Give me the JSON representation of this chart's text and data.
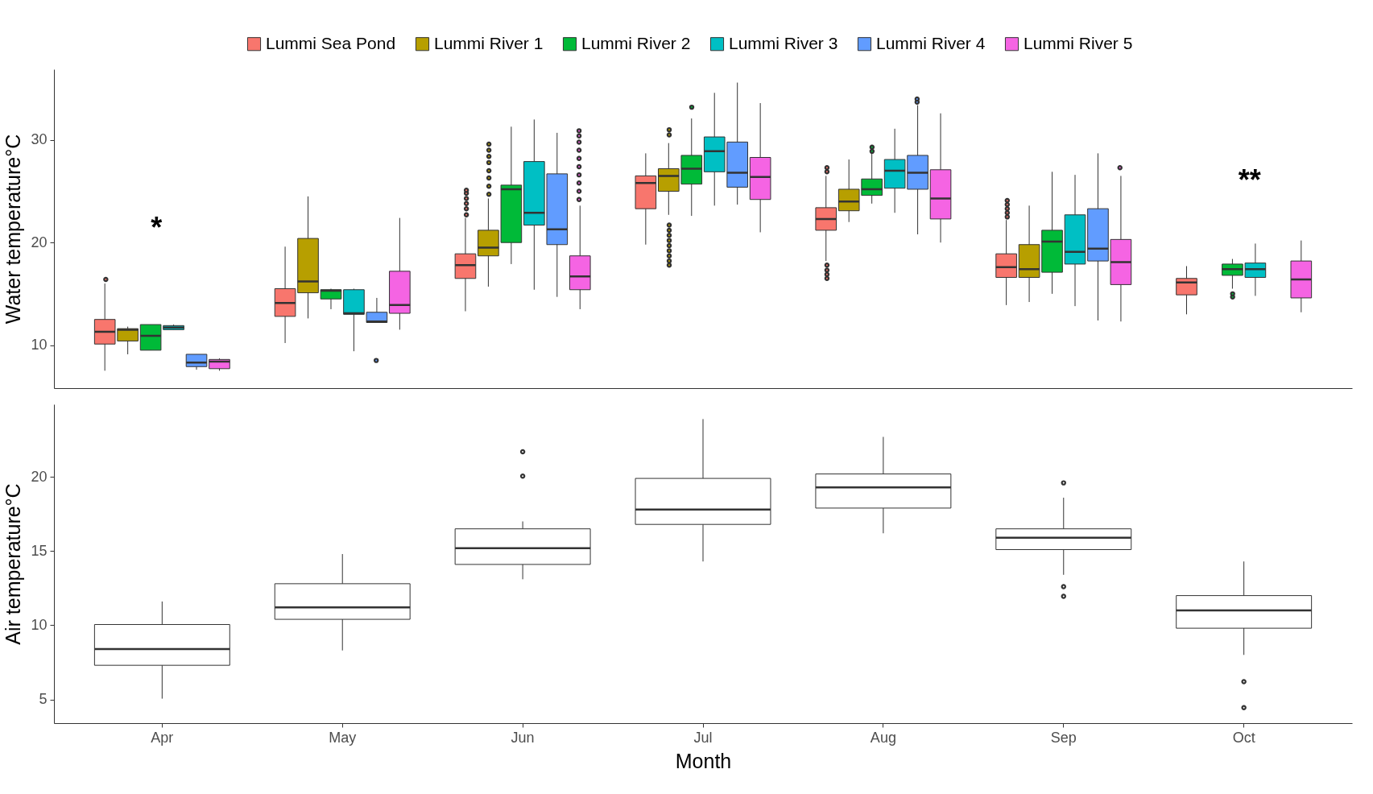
{
  "chart_data": [
    {
      "type": "box",
      "ylabel": "Water temperature°C",
      "ylim": [
        5.8,
        36.9
      ],
      "yticks": [
        10,
        20,
        30
      ],
      "tick_labels": "y",
      "legend": "top",
      "grid": false,
      "annotations": [
        "*",
        "**"
      ],
      "series": [
        {
          "name": "Lummi Sea Pond",
          "color": "#f8766d",
          "boxes": [
            {
              "low": 7.5,
              "q1": 10.1,
              "median": 11.3,
              "q3": 12.5,
              "high": 16.0,
              "outliers": [
                16.4
              ]
            },
            {
              "low": 10.2,
              "q1": 12.8,
              "median": 14.1,
              "q3": 15.5,
              "high": 19.6
            },
            {
              "low": 13.3,
              "q1": 16.5,
              "median": 17.8,
              "q3": 18.9,
              "high": 22.4,
              "outliers": [
                22.7,
                23.3,
                23.8,
                24.3,
                24.8,
                25.1
              ]
            },
            {
              "low": 19.8,
              "q1": 23.3,
              "median": 25.8,
              "q3": 26.5,
              "high": 28.7
            },
            {
              "low": 18.2,
              "q1": 21.2,
              "median": 22.3,
              "q3": 23.4,
              "high": 26.5,
              "outliers": [
                26.9,
                27.3,
                16.5,
                16.9,
                17.3,
                17.8
              ]
            },
            {
              "low": 13.9,
              "q1": 16.6,
              "median": 17.6,
              "q3": 18.9,
              "high": 22.2,
              "outliers": [
                22.5,
                22.9,
                23.3,
                23.7,
                24.1
              ]
            },
            {
              "low": 13.0,
              "q1": 14.9,
              "median": 16.1,
              "q3": 16.5,
              "high": 17.7
            }
          ]
        },
        {
          "name": "Lummi River 1",
          "color": "#b79f00",
          "boxes": [
            {
              "low": 9.1,
              "q1": 10.4,
              "median": 11.5,
              "q3": 11.6,
              "high": 11.8
            },
            {
              "low": 12.6,
              "q1": 15.1,
              "median": 16.2,
              "q3": 20.4,
              "high": 24.5
            },
            {
              "low": 15.7,
              "q1": 18.7,
              "median": 19.5,
              "q3": 21.2,
              "high": 24.3,
              "outliers": [
                24.7,
                25.5,
                26.3,
                27.0,
                27.8,
                28.4,
                29.0,
                29.6
              ]
            },
            {
              "low": 22.7,
              "q1": 25.0,
              "median": 26.5,
              "q3": 27.2,
              "high": 29.7,
              "outliers": [
                30.5,
                31.0,
                17.8,
                18.2,
                18.7,
                19.2,
                19.7,
                20.2,
                20.7,
                21.2,
                21.7
              ]
            },
            {
              "low": 22.0,
              "q1": 23.1,
              "median": 24.0,
              "q3": 25.2,
              "high": 28.1
            },
            {
              "low": 14.2,
              "q1": 16.6,
              "median": 17.4,
              "q3": 19.8,
              "high": 23.6
            },
            null
          ]
        },
        {
          "name": "Lummi River 2",
          "color": "#00ba38",
          "boxes": [
            {
              "low": 9.5,
              "q1": 9.5,
              "median": 10.9,
              "q3": 12.0,
              "high": 12.0
            },
            {
              "low": 13.5,
              "q1": 14.5,
              "median": 15.3,
              "q3": 15.4,
              "high": 15.5
            },
            {
              "low": 17.9,
              "q1": 20.0,
              "median": 25.2,
              "q3": 25.6,
              "high": 31.3
            },
            {
              "low": 22.6,
              "q1": 25.7,
              "median": 27.2,
              "q3": 28.5,
              "high": 32.1,
              "outliers": [
                33.2
              ]
            },
            {
              "low": 23.8,
              "q1": 24.6,
              "median": 25.2,
              "q3": 26.2,
              "high": 28.7,
              "outliers": [
                28.9,
                29.3
              ]
            },
            {
              "low": 15.0,
              "q1": 17.1,
              "median": 20.1,
              "q3": 21.2,
              "high": 26.9
            },
            {
              "low": 15.5,
              "q1": 16.8,
              "median": 17.4,
              "q3": 17.9,
              "high": 18.4,
              "outliers": [
                14.7,
                15.0
              ]
            }
          ]
        },
        {
          "name": "Lummi River 3",
          "color": "#00bfc4",
          "boxes": [
            {
              "low": 11.5,
              "q1": 11.5,
              "median": 11.7,
              "q3": 11.9,
              "high": 12.0
            },
            {
              "low": 9.4,
              "q1": 13.0,
              "median": 13.1,
              "q3": 15.4,
              "high": 15.5
            },
            {
              "low": 15.4,
              "q1": 21.7,
              "median": 22.9,
              "q3": 27.9,
              "high": 32.0
            },
            {
              "low": 23.6,
              "q1": 26.9,
              "median": 28.9,
              "q3": 30.3,
              "high": 34.6
            },
            {
              "low": 22.9,
              "q1": 25.3,
              "median": 27.0,
              "q3": 28.1,
              "high": 31.1
            },
            {
              "low": 13.8,
              "q1": 17.9,
              "median": 19.1,
              "q3": 22.7,
              "high": 26.6
            },
            {
              "low": 14.8,
              "q1": 16.6,
              "median": 17.4,
              "q3": 18.0,
              "high": 19.9
            }
          ]
        },
        {
          "name": "Lummi River 4",
          "color": "#619cff",
          "boxes": [
            {
              "low": 7.6,
              "q1": 7.9,
              "median": 8.3,
              "q3": 9.1,
              "high": 9.1
            },
            {
              "low": 12.2,
              "q1": 12.2,
              "median": 12.3,
              "q3": 13.2,
              "high": 14.6,
              "outliers": [
                8.5
              ]
            },
            {
              "low": 14.7,
              "q1": 19.8,
              "median": 21.3,
              "q3": 26.7,
              "high": 30.7
            },
            {
              "low": 23.7,
              "q1": 25.4,
              "median": 26.8,
              "q3": 29.8,
              "high": 35.6
            },
            {
              "low": 20.8,
              "q1": 25.2,
              "median": 26.8,
              "q3": 28.5,
              "high": 33.4,
              "outliers": [
                33.7,
                34.0
              ]
            },
            {
              "low": 12.4,
              "q1": 18.2,
              "median": 19.4,
              "q3": 23.3,
              "high": 28.7
            },
            null
          ]
        },
        {
          "name": "Lummi River 5",
          "color": "#f564e3",
          "boxes": [
            {
              "low": 7.5,
              "q1": 7.7,
              "median": 8.4,
              "q3": 8.6,
              "high": 8.7
            },
            {
              "low": 11.5,
              "q1": 13.1,
              "median": 13.9,
              "q3": 17.2,
              "high": 22.4
            },
            {
              "low": 13.5,
              "q1": 15.4,
              "median": 16.7,
              "q3": 18.7,
              "high": 23.6,
              "outliers": [
                24.2,
                25.0,
                25.8,
                26.6,
                27.4,
                28.2,
                29.0,
                29.8,
                30.4,
                30.9
              ]
            },
            {
              "low": 21.0,
              "q1": 24.2,
              "median": 26.4,
              "q3": 28.3,
              "high": 33.6
            },
            {
              "low": 20.0,
              "q1": 22.3,
              "median": 24.3,
              "q3": 27.1,
              "high": 32.6
            },
            {
              "low": 12.3,
              "q1": 15.9,
              "median": 18.1,
              "q3": 20.3,
              "high": 26.5,
              "outliers": [
                27.3
              ]
            },
            {
              "low": 13.2,
              "q1": 14.6,
              "median": 16.4,
              "q3": 18.2,
              "high": 20.2
            }
          ]
        }
      ]
    },
    {
      "type": "box",
      "xlabel": "Month",
      "ylabel": "Air temperature°C",
      "categories": [
        "Apr",
        "May",
        "Jun",
        "Jul",
        "Aug",
        "Sep",
        "Oct"
      ],
      "ylim": [
        3.4,
        24.9
      ],
      "yticks": [
        5,
        10,
        15,
        20
      ],
      "grid": false,
      "series": [
        {
          "color": "#ffffff",
          "boxes": [
            {
              "low": 5.05,
              "q1": 7.3,
              "median": 8.4,
              "q3": 10.05,
              "high": 11.6
            },
            {
              "low": 8.3,
              "q1": 10.4,
              "median": 11.2,
              "q3": 12.8,
              "high": 14.8
            },
            {
              "low": 13.1,
              "q1": 14.1,
              "median": 15.2,
              "q3": 16.5,
              "high": 17.0,
              "outliers": [
                20.05,
                21.7
              ]
            },
            {
              "low": 14.3,
              "q1": 16.8,
              "median": 17.8,
              "q3": 19.9,
              "high": 23.9
            },
            {
              "low": 16.2,
              "q1": 17.9,
              "median": 19.3,
              "q3": 20.2,
              "high": 22.7
            },
            {
              "low": 13.4,
              "q1": 15.1,
              "median": 15.9,
              "q3": 16.5,
              "high": 18.6,
              "outliers": [
                19.6,
                12.6,
                11.95
              ]
            },
            {
              "low": 8.0,
              "q1": 9.8,
              "median": 11.0,
              "q3": 12.0,
              "high": 14.3,
              "outliers": [
                6.2,
                4.45
              ]
            }
          ]
        }
      ]
    }
  ]
}
